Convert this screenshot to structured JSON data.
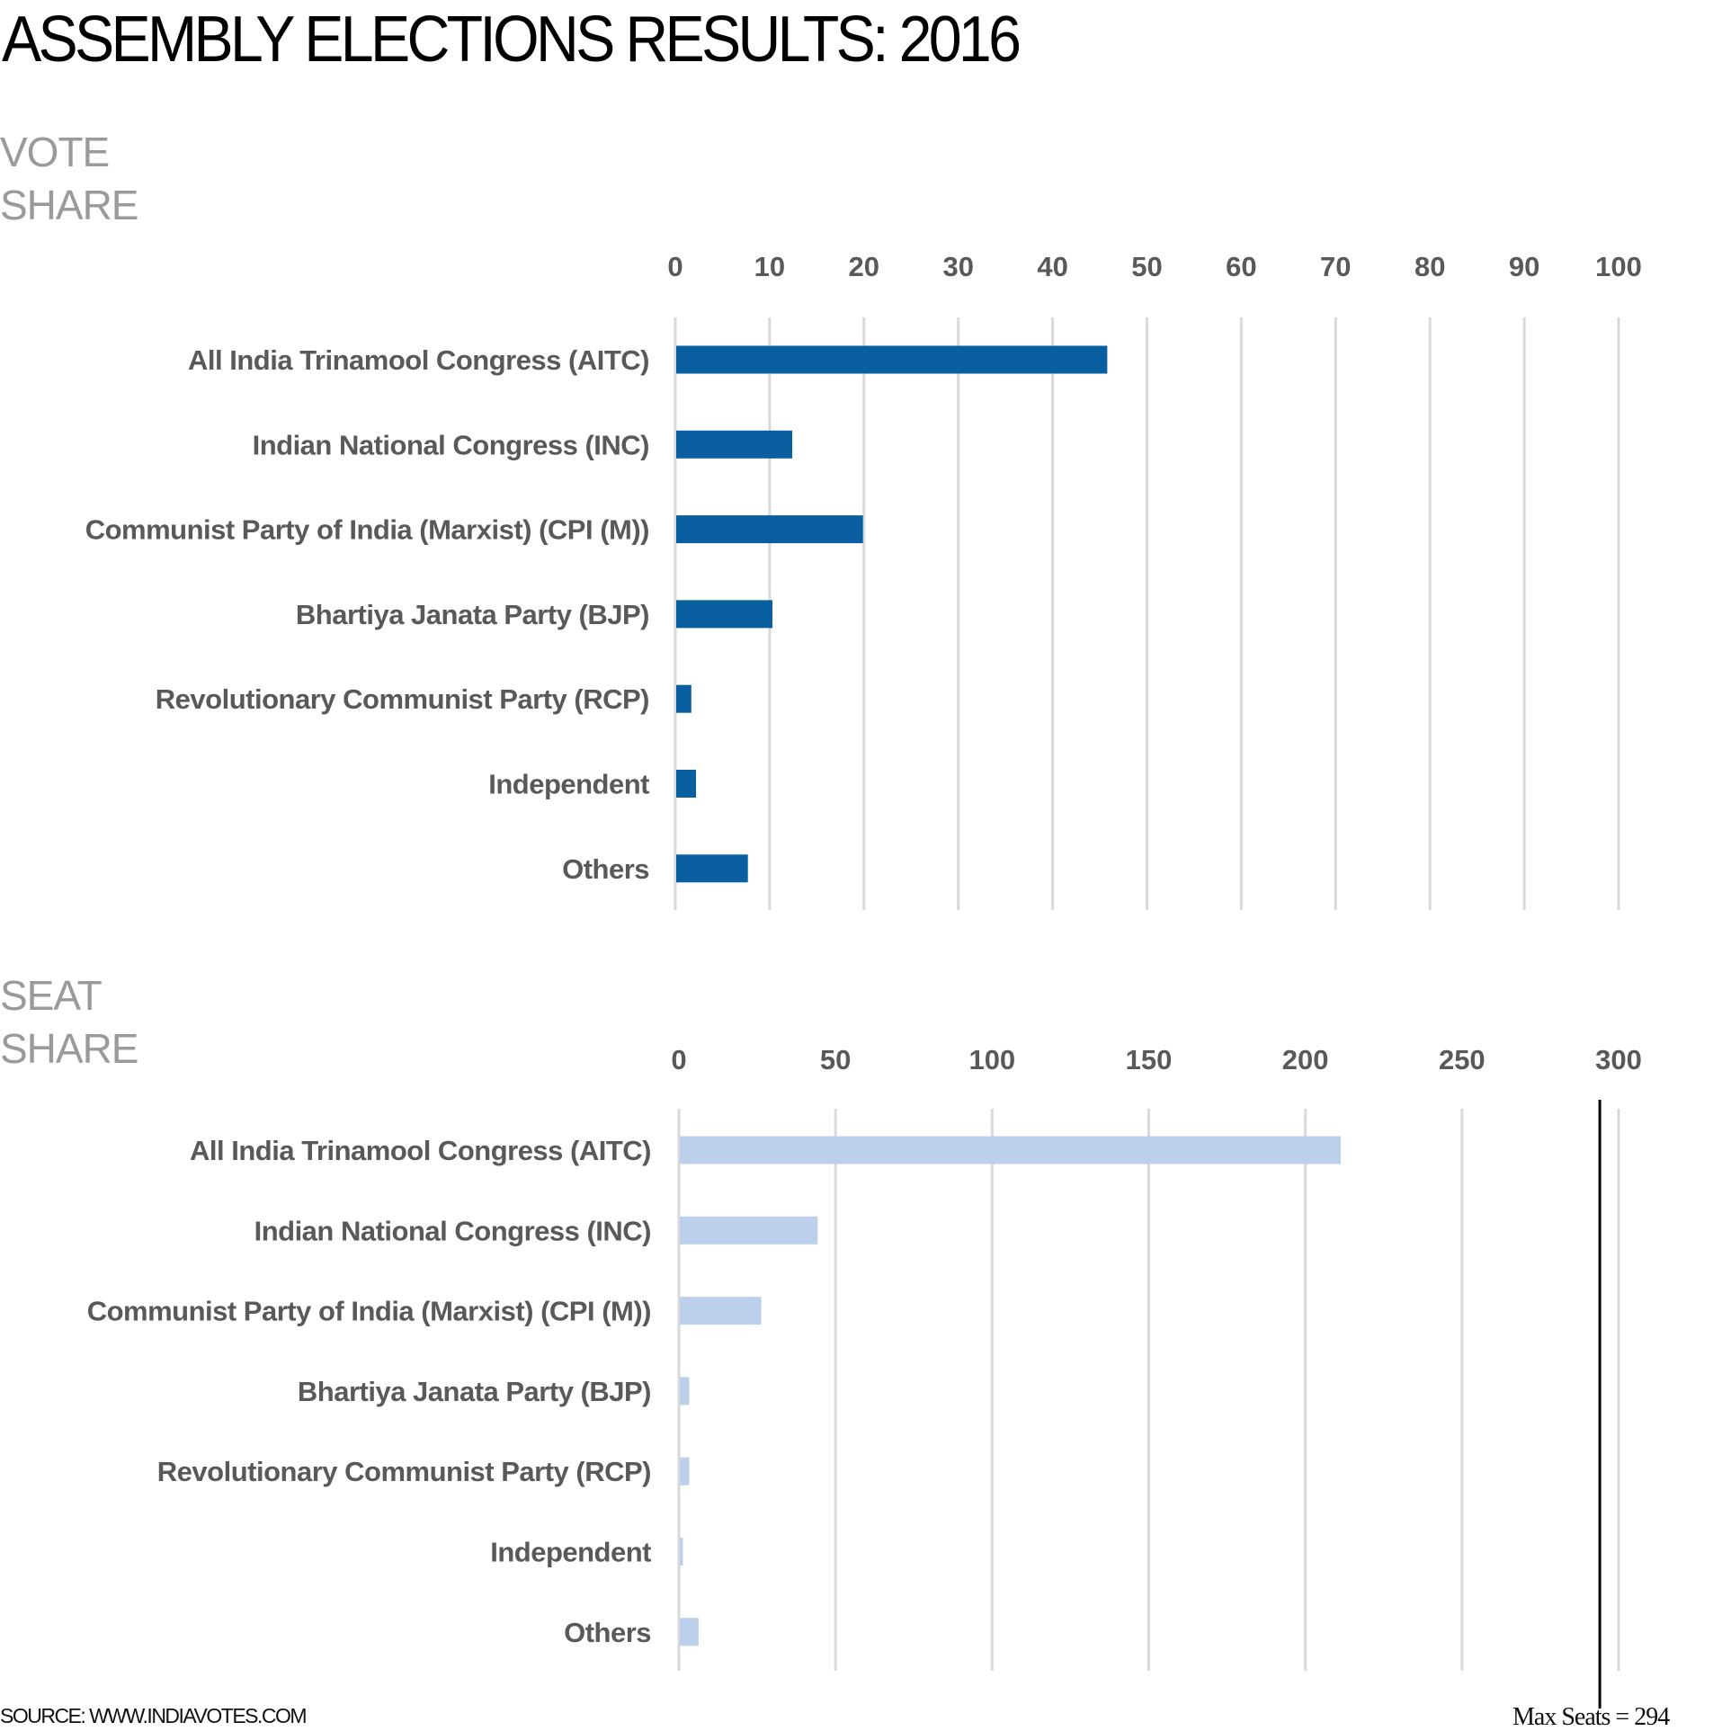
{
  "page": {
    "title": "ASSEMBLY ELECTIONS RESULTS: 2016",
    "source": "SOURCE: WWW.INDIAVOTES.COM",
    "max_seats_note": "Max Seats = 294"
  },
  "colors": {
    "vote_bar": "#0a5fa0",
    "seat_bar": "#bcd0ec",
    "grid": "#d9d9d9",
    "label": "#595959",
    "section_title": "#9a9a9a",
    "reference_line": "#000000"
  },
  "chart_data": [
    {
      "type": "bar",
      "orientation": "horizontal",
      "title": [
        "VOTE",
        "SHARE"
      ],
      "categories": [
        "All India Trinamool Congress (AITC)",
        "Indian National Congress (INC)",
        "Communist Party of India (Marxist) (CPI (M))",
        "Bhartiya Janata Party (BJP)",
        "Revolutionary Communist Party (RCP)",
        "Independent",
        "Others"
      ],
      "values": [
        45.7,
        12.3,
        19.8,
        10.2,
        1.6,
        2.1,
        7.6
      ],
      "xlim": [
        0,
        100
      ],
      "ticks": [
        0,
        10,
        20,
        30,
        40,
        50,
        60,
        70,
        80,
        90,
        100
      ],
      "axis_position": "top",
      "grid": true
    },
    {
      "type": "bar",
      "orientation": "horizontal",
      "title": [
        "SEAT",
        "SHARE"
      ],
      "categories": [
        "All India Trinamool Congress (AITC)",
        "Indian National Congress (INC)",
        "Communist Party of India (Marxist) (CPI (M))",
        "Bhartiya Janata Party (BJP)",
        "Revolutionary Communist Party (RCP)",
        "Independent",
        "Others"
      ],
      "values": [
        211,
        44,
        26,
        3,
        3,
        1,
        6
      ],
      "xlim": [
        0,
        300
      ],
      "ticks": [
        0,
        50,
        100,
        150,
        200,
        250,
        300
      ],
      "axis_position": "top",
      "grid": true,
      "reference_line": 294
    }
  ]
}
